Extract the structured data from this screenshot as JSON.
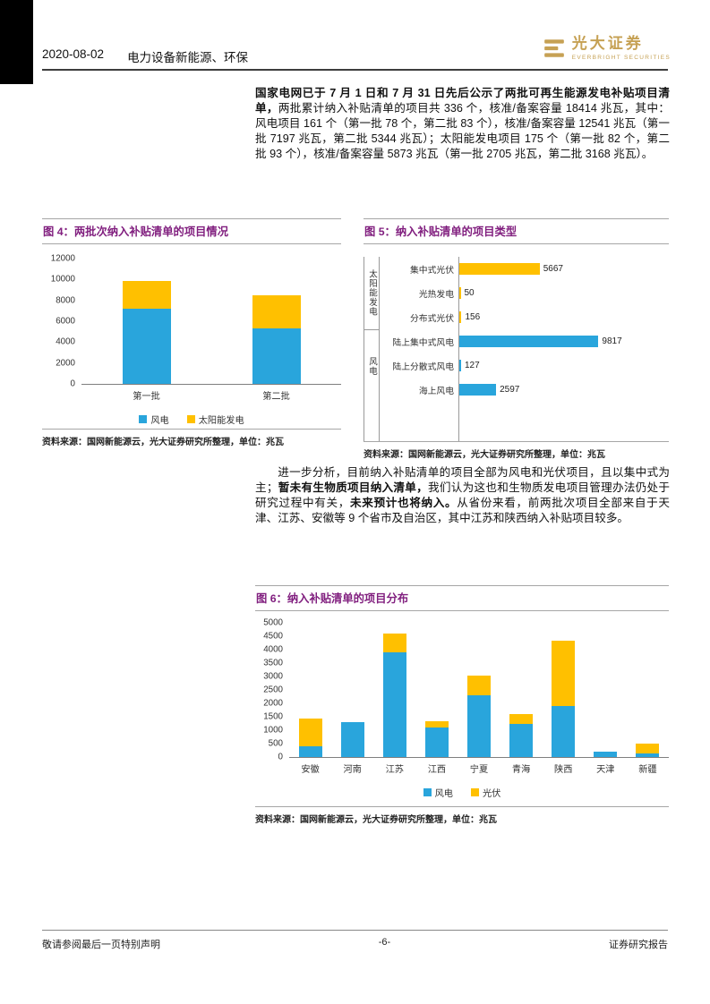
{
  "header": {
    "date": "2020-08-02",
    "section": "电力设备新能源、环保",
    "brand": "光大证券",
    "brand_sub": "EVERBRIGHT SECURITIES"
  },
  "intro": {
    "segments": [
      {
        "text": "国家电网已于 7 月 1 日和 7 月 31 日先后公示了两批可再生能源发电补贴项目清单，",
        "bold": true
      },
      {
        "text": "两批累计纳入补贴清单的项目共 336 个，核准/备案容量 18414 兆瓦，其中：风电项目 161 个（第一批 78 个，第二批 83 个），核准/备案容量 12541 兆瓦（第一批 7197 兆瓦，第二批 5344 兆瓦）；太阳能发电项目 175 个（第一批 82 个，第二批 93 个），核准/备案容量 5873 兆瓦（第一批 2705 兆瓦，第二批 3168 兆瓦）。",
        "bold": false
      }
    ]
  },
  "analysis": {
    "segments": [
      {
        "text": "进一步分析，目前纳入补贴清单的项目全部为风电和光伏项目，且以集中式为主；",
        "bold": false
      },
      {
        "text": "暂未有生物质项目纳入清单，",
        "bold": true
      },
      {
        "text": "我们认为这也和生物质发电项目管理办法仍处于研究过程中有关，",
        "bold": false
      },
      {
        "text": "未来预计也将纳入。",
        "bold": true
      },
      {
        "text": "从省份来看，前两批次项目全部来自于天津、江苏、安徽等 9 个省市及自治区，其中江苏和陕西纳入补贴项目较多。",
        "bold": false
      }
    ]
  },
  "footer": {
    "left": "敬请参阅最后一页特别声明",
    "page": "-6-",
    "right": "证券研究报告"
  },
  "colors": {
    "title_purple": "#811F7F",
    "wind_blue": "#29A5DC",
    "solar_yellow": "#FFC000",
    "brand_gold": "#C6A154"
  },
  "chart_data": [
    {
      "id": "fig4",
      "type": "bar",
      "stacked": true,
      "title": "图 4：两批次纳入补贴清单的项目情况",
      "categories": [
        "第一批",
        "第二批"
      ],
      "series": [
        {
          "name": "风电",
          "color": "#29A5DC",
          "values": [
            7197,
            5344
          ]
        },
        {
          "name": "太阳能发电",
          "color": "#FFC000",
          "values": [
            2705,
            3168
          ]
        }
      ],
      "ylim": [
        0,
        12000
      ],
      "ytick": 2000,
      "legend_position": "bottom",
      "grid": false,
      "source": "资料来源：国网新能源云，光大证券研究所整理，单位：兆瓦"
    },
    {
      "id": "fig5",
      "type": "bar",
      "orientation": "horizontal",
      "title": "图 5：纳入补贴清单的项目类型",
      "xlim": [
        0,
        12000
      ],
      "grid": false,
      "groups": [
        {
          "name": "太阳能发电",
          "color": "#FFC000",
          "items": [
            {
              "label": "集中式光伏",
              "value": 5667
            },
            {
              "label": "光热发电",
              "value": 50
            },
            {
              "label": "分布式光伏",
              "value": 156
            }
          ]
        },
        {
          "name": "风电",
          "color": "#29A5DC",
          "items": [
            {
              "label": "陆上集中式风电",
              "value": 9817
            },
            {
              "label": "陆上分散式风电",
              "value": 127
            },
            {
              "label": "海上风电",
              "value": 2597
            }
          ]
        }
      ],
      "source": "资料来源：国网新能源云，光大证券研究所整理，单位：兆瓦"
    },
    {
      "id": "fig6",
      "type": "bar",
      "stacked": true,
      "title": "图 6：纳入补贴清单的项目分布",
      "categories": [
        "安徽",
        "河南",
        "江苏",
        "江西",
        "宁夏",
        "青海",
        "陕西",
        "天津",
        "新疆"
      ],
      "series": [
        {
          "name": "风电",
          "color": "#29A5DC",
          "values": [
            400,
            1300,
            3900,
            1100,
            2300,
            1250,
            1900,
            200,
            150
          ]
        },
        {
          "name": "光伏",
          "color": "#FFC000",
          "values": [
            1050,
            0,
            700,
            250,
            750,
            350,
            2450,
            0,
            350
          ]
        }
      ],
      "ylim": [
        0,
        5000
      ],
      "ytick": 500,
      "legend_position": "bottom",
      "grid": false,
      "source": "资料来源：国网新能源云，光大证券研究所整理，单位：兆瓦"
    }
  ]
}
